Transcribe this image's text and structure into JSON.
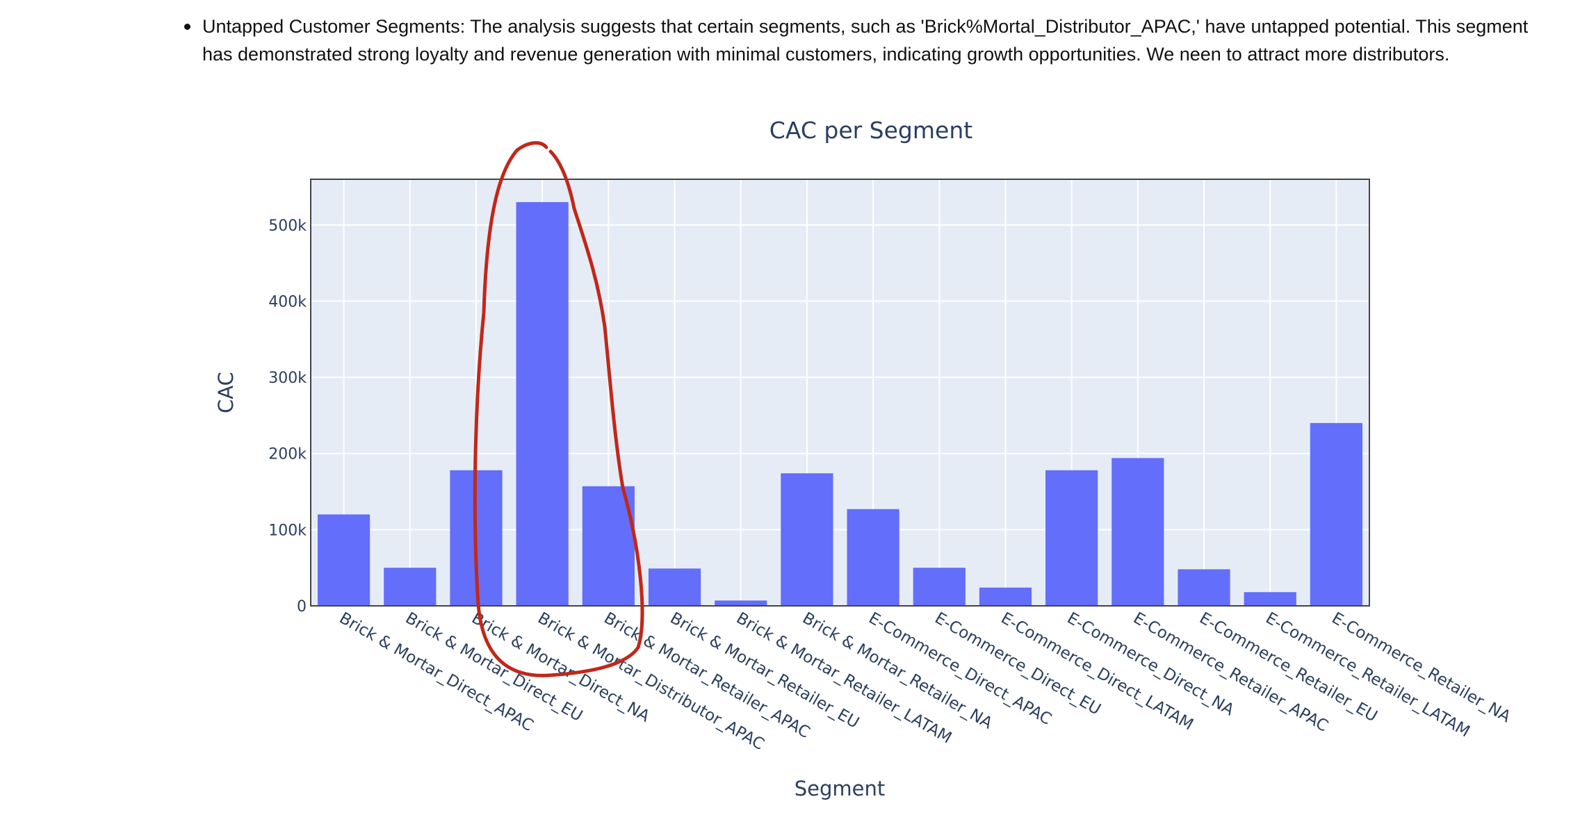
{
  "note": {
    "bullet_text": "Untapped Customer Segments: The analysis suggests that certain segments, such as 'Brick%Mortal_Distributor_APAC,' have untapped potential. This segment has demonstrated strong loyalty and revenue generation with minimal customers, indicating growth opportunities. We neen to attract more distributors."
  },
  "colors": {
    "bar": "#636efa",
    "plot_background": "#e5ecf6",
    "text": "#2a3f5f",
    "annotation_circle": "#c0281a"
  },
  "chart_data": {
    "type": "bar",
    "title": "CAC per Segment",
    "xlabel": "Segment",
    "ylabel": "CAC",
    "ylim": [
      0,
      560000
    ],
    "yticks": [
      0,
      100000,
      200000,
      300000,
      400000,
      500000
    ],
    "ytick_labels": [
      "0",
      "100k",
      "200k",
      "300k",
      "400k",
      "500k"
    ],
    "grid": true,
    "categories": [
      "Brick & Mortar_Direct_APAC",
      "Brick & Mortar_Direct_EU",
      "Brick & Mortar_Direct_NA",
      "Brick & Mortar_Distributor_APAC",
      "Brick & Mortar_Retailer_APAC",
      "Brick & Mortar_Retailer_EU",
      "Brick & Mortar_Retailer_LATAM",
      "Brick & Mortar_Retailer_NA",
      "E-Commerce_Direct_APAC",
      "E-Commerce_Direct_EU",
      "E-Commerce_Direct_LATAM",
      "E-Commerce_Direct_NA",
      "E-Commerce_Retailer_APAC",
      "E-Commerce_Retailer_EU",
      "E-Commerce_Retailer_LATAM",
      "E-Commerce_Retailer_NA"
    ],
    "values": [
      120000,
      50000,
      178000,
      530000,
      157000,
      49000,
      7000,
      174000,
      127000,
      50000,
      24000,
      178000,
      194000,
      48000,
      18000,
      240000
    ],
    "highlighted_category": "Brick & Mortar_Distributor_APAC"
  }
}
